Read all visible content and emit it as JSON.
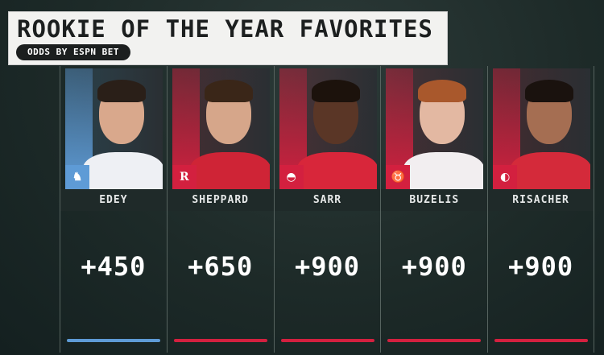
{
  "header": {
    "title": "ROOKIE OF THE YEAR FAVORITES",
    "subtitle": "ODDS BY ESPN BET"
  },
  "players": [
    {
      "name": "EDEY",
      "odds": "+450",
      "team_logo": "grizzlies-logo",
      "color": "#5e9bd6",
      "jersey": "#eef0f4",
      "skin": "#d9a88c",
      "hair": "#2a1f18"
    },
    {
      "name": "SHEPPARD",
      "odds": "+650",
      "team_logo": "rockets-logo",
      "color": "#d3203f",
      "jersey": "#cf2436",
      "skin": "#d6a68a",
      "hair": "#3a2618"
    },
    {
      "name": "SARR",
      "odds": "+900",
      "team_logo": "wizards-logo",
      "color": "#d3203f",
      "jersey": "#d8263a",
      "skin": "#5a3626",
      "hair": "#1c120c"
    },
    {
      "name": "BUZELIS",
      "odds": "+900",
      "team_logo": "bulls-logo",
      "color": "#d3203f",
      "jersey": "#f2eef0",
      "skin": "#e3b8a2",
      "hair": "#a9582c"
    },
    {
      "name": "RISACHER",
      "odds": "+900",
      "team_logo": "hawks-logo",
      "color": "#d3203f",
      "jersey": "#d42a3a",
      "skin": "#a56e52",
      "hair": "#1a120e"
    }
  ]
}
